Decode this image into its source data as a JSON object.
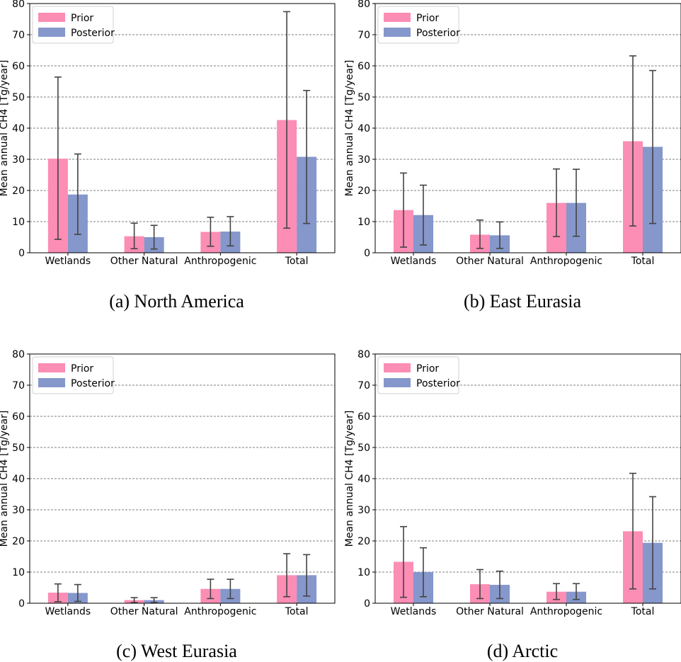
{
  "chart_data": [
    {
      "type": "bar",
      "caption": "(a) North America",
      "ylabel": "Mean annual CH4 [Tg/year]",
      "ylim": [
        0,
        80
      ],
      "yticks": [
        0,
        10,
        20,
        30,
        40,
        50,
        60,
        70,
        80
      ],
      "grid": "horizontal dashed",
      "legend_position": "top-left",
      "categories": [
        "Wetlands",
        "Other Natural",
        "Anthropogenic",
        "Total"
      ],
      "series": [
        {
          "name": "Prior",
          "color": "#fc8db4",
          "values": [
            30.2,
            5.3,
            6.7,
            42.6
          ],
          "err_low": [
            4.3,
            1.3,
            2.1,
            7.9
          ],
          "err_high": [
            56.4,
            9.5,
            11.4,
            77.4
          ]
        },
        {
          "name": "Posterior",
          "color": "#8597cb",
          "values": [
            18.7,
            5.0,
            6.8,
            30.8
          ],
          "err_low": [
            5.9,
            1.2,
            2.2,
            9.4
          ],
          "err_high": [
            31.7,
            8.8,
            11.6,
            52.1
          ]
        }
      ]
    },
    {
      "type": "bar",
      "caption": "(b) East Eurasia",
      "ylabel": "Mean annual CH4 [Tg/year]",
      "ylim": [
        0,
        80
      ],
      "yticks": [
        0,
        10,
        20,
        30,
        40,
        50,
        60,
        70,
        80
      ],
      "grid": "horizontal dashed",
      "legend_position": "top-left",
      "categories": [
        "Wetlands",
        "Other Natural",
        "Anthropogenic",
        "Total"
      ],
      "series": [
        {
          "name": "Prior",
          "color": "#fc8db4",
          "values": [
            13.7,
            5.8,
            16.0,
            35.8
          ],
          "err_low": [
            1.8,
            1.4,
            5.2,
            8.6
          ],
          "err_high": [
            25.6,
            10.5,
            26.9,
            63.2
          ]
        },
        {
          "name": "Posterior",
          "color": "#8597cb",
          "values": [
            12.1,
            5.6,
            16.0,
            34.0
          ],
          "err_low": [
            2.5,
            1.4,
            5.3,
            9.4
          ],
          "err_high": [
            21.7,
            9.9,
            26.8,
            58.5
          ]
        }
      ]
    },
    {
      "type": "bar",
      "caption": "(c) West Eurasia",
      "ylabel": "Mean annual CH4 [Tg/year]",
      "ylim": [
        0,
        80
      ],
      "yticks": [
        0,
        10,
        20,
        30,
        40,
        50,
        60,
        70,
        80
      ],
      "grid": "horizontal dashed",
      "legend_position": "top-left",
      "categories": [
        "Wetlands",
        "Other Natural",
        "Anthropogenic",
        "Total"
      ],
      "series": [
        {
          "name": "Prior",
          "color": "#fc8db4",
          "values": [
            3.4,
            1.0,
            4.6,
            9.0
          ],
          "err_low": [
            0.5,
            0.2,
            1.5,
            2.1
          ],
          "err_high": [
            6.2,
            1.8,
            7.7,
            15.9
          ]
        },
        {
          "name": "Posterior",
          "color": "#8597cb",
          "values": [
            3.3,
            1.0,
            4.6,
            9.0
          ],
          "err_low": [
            0.6,
            0.2,
            1.5,
            2.3
          ],
          "err_high": [
            6.0,
            1.8,
            7.7,
            15.6
          ]
        }
      ]
    },
    {
      "type": "bar",
      "caption": "(d) Arctic",
      "ylabel": "Mean annual CH4 [Tg/year]",
      "ylim": [
        0,
        80
      ],
      "yticks": [
        0,
        10,
        20,
        30,
        40,
        50,
        60,
        70,
        80
      ],
      "grid": "horizontal dashed",
      "legend_position": "top-left",
      "categories": [
        "Wetlands",
        "Other Natural",
        "Anthropogenic",
        "Total"
      ],
      "series": [
        {
          "name": "Prior",
          "color": "#fc8db4",
          "values": [
            13.3,
            6.1,
            3.7,
            23.1
          ],
          "err_low": [
            1.9,
            1.5,
            1.2,
            4.6
          ],
          "err_high": [
            24.6,
            10.8,
            6.3,
            41.7
          ]
        },
        {
          "name": "Posterior",
          "color": "#8597cb",
          "values": [
            10.0,
            5.9,
            3.7,
            19.4
          ],
          "err_low": [
            2.1,
            1.5,
            1.2,
            4.6
          ],
          "err_high": [
            17.8,
            10.3,
            6.3,
            34.2
          ]
        }
      ]
    }
  ]
}
